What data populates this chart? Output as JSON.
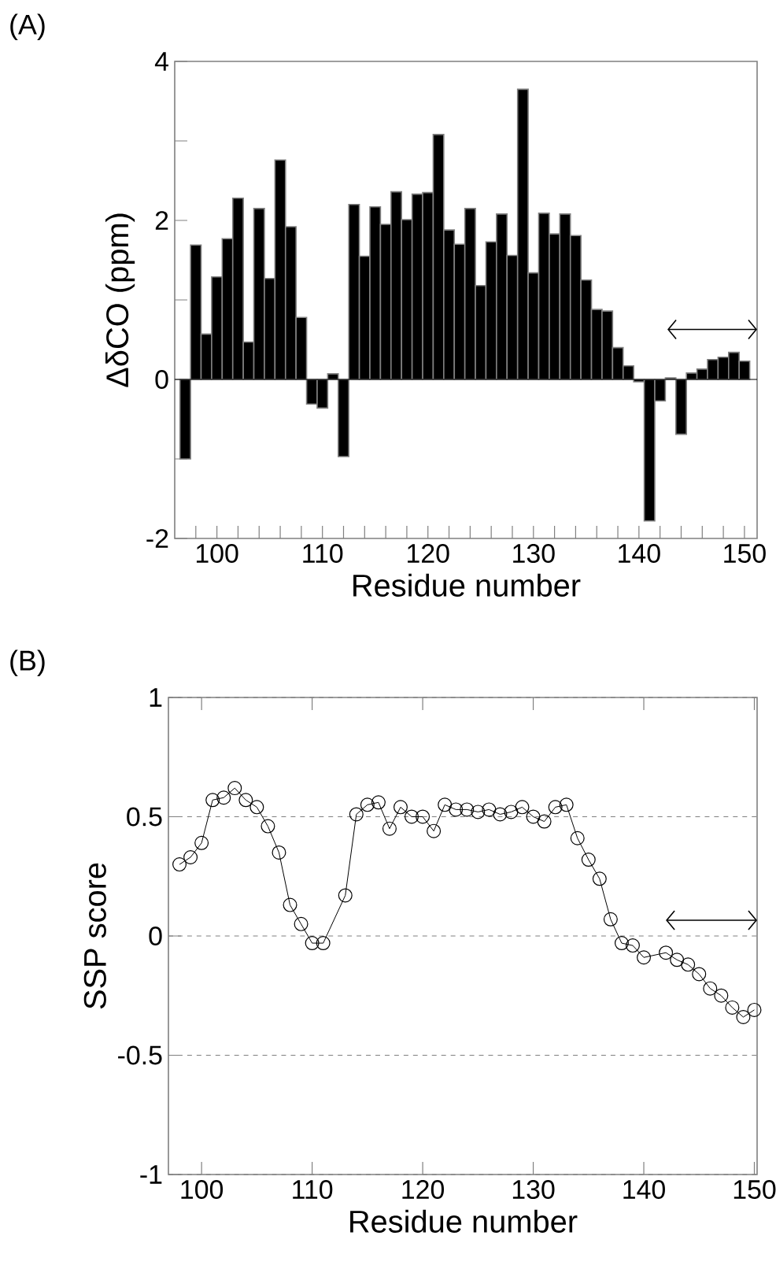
{
  "chart_data": [
    {
      "type": "bar",
      "title": "(A)",
      "xlabel": "Residue number",
      "ylabel": "ΔδCO (ppm)",
      "color": "#000000",
      "x": [
        97,
        98,
        99,
        100,
        101,
        102,
        103,
        104,
        105,
        106,
        107,
        108,
        109,
        110,
        111,
        112,
        113,
        114,
        115,
        116,
        117,
        118,
        119,
        120,
        121,
        122,
        123,
        124,
        125,
        126,
        127,
        128,
        129,
        130,
        131,
        132,
        133,
        134,
        135,
        136,
        137,
        138,
        139,
        140,
        141,
        142,
        143,
        144,
        145,
        146,
        147,
        148,
        149,
        150
      ],
      "values": [
        -1.0,
        1.69,
        0.57,
        1.29,
        1.77,
        2.28,
        0.47,
        2.15,
        1.27,
        2.76,
        1.92,
        0.78,
        -0.31,
        -0.36,
        0.07,
        -0.97,
        2.2,
        1.55,
        2.17,
        1.95,
        2.36,
        2.01,
        2.33,
        2.35,
        3.08,
        1.88,
        1.7,
        2.15,
        1.18,
        1.73,
        2.08,
        1.56,
        3.65,
        1.34,
        2.09,
        1.83,
        2.08,
        1.81,
        1.25,
        0.88,
        0.86,
        0.4,
        0.17,
        -0.03,
        -1.78,
        -0.27,
        0.02,
        -0.69,
        0.08,
        0.13,
        0.25,
        0.28,
        0.34,
        0.23
      ],
      "xlim": [
        96,
        151.2
      ],
      "ylim": [
        -2,
        4
      ],
      "xticks": [
        {
          "value": 98,
          "label": null
        },
        100,
        {
          "value": 102,
          "label": null
        },
        {
          "value": 104,
          "label": null
        },
        {
          "value": 106,
          "label": null
        },
        {
          "value": 108,
          "label": null
        },
        110,
        {
          "value": 112,
          "label": null
        },
        {
          "value": 114,
          "label": null
        },
        {
          "value": 116,
          "label": null
        },
        {
          "value": 118,
          "label": null
        },
        120,
        {
          "value": 122,
          "label": null
        },
        {
          "value": 124,
          "label": null
        },
        {
          "value": 126,
          "label": null
        },
        {
          "value": 128,
          "label": null
        },
        130,
        {
          "value": 132,
          "label": null
        },
        {
          "value": 134,
          "label": null
        },
        {
          "value": 136,
          "label": null
        },
        {
          "value": 138,
          "label": null
        },
        140,
        {
          "value": 142,
          "label": null
        },
        {
          "value": 144,
          "label": null
        },
        {
          "value": 146,
          "label": null
        },
        {
          "value": 148,
          "label": null
        },
        150
      ],
      "yticks": [
        -2,
        {
          "value": -1,
          "label": null
        },
        0,
        {
          "value": 1,
          "label": null
        },
        2,
        {
          "value": 3,
          "label": null
        },
        4
      ]
    },
    {
      "type": "line",
      "title": "(B)",
      "xlabel": "Residue number",
      "ylabel": "SSP score",
      "color": "#000000",
      "marker": "circle",
      "line_style": "solid",
      "grid": "y",
      "x": [
        98,
        99,
        100,
        101,
        102,
        103,
        104,
        105,
        106,
        107,
        108,
        109,
        110,
        111,
        113,
        114,
        115,
        116,
        117,
        118,
        119,
        120,
        121,
        122,
        123,
        124,
        125,
        126,
        127,
        128,
        129,
        130,
        131,
        132,
        133,
        134,
        135,
        136,
        137,
        138,
        139,
        140,
        142,
        143,
        144,
        145,
        146,
        147,
        148,
        149,
        150
      ],
      "values": [
        0.3,
        0.33,
        0.39,
        0.57,
        0.58,
        0.62,
        0.57,
        0.54,
        0.46,
        0.35,
        0.13,
        0.05,
        -0.03,
        -0.03,
        0.17,
        0.51,
        0.55,
        0.56,
        0.45,
        0.54,
        0.5,
        0.5,
        0.44,
        0.55,
        0.53,
        0.53,
        0.52,
        0.53,
        0.51,
        0.52,
        0.54,
        0.5,
        0.48,
        0.54,
        0.55,
        0.41,
        0.32,
        0.24,
        0.07,
        -0.03,
        -0.04,
        -0.09,
        -0.07,
        -0.1,
        -0.12,
        -0.16,
        -0.22,
        -0.25,
        -0.3,
        -0.34,
        -0.31
      ],
      "xlim": [
        97,
        150.25
      ],
      "ylim": [
        -1,
        1
      ],
      "xticks": [
        100,
        110,
        120,
        130,
        140,
        150
      ],
      "yticks": [
        -1,
        -0.5,
        0,
        0.5,
        1
      ]
    }
  ]
}
